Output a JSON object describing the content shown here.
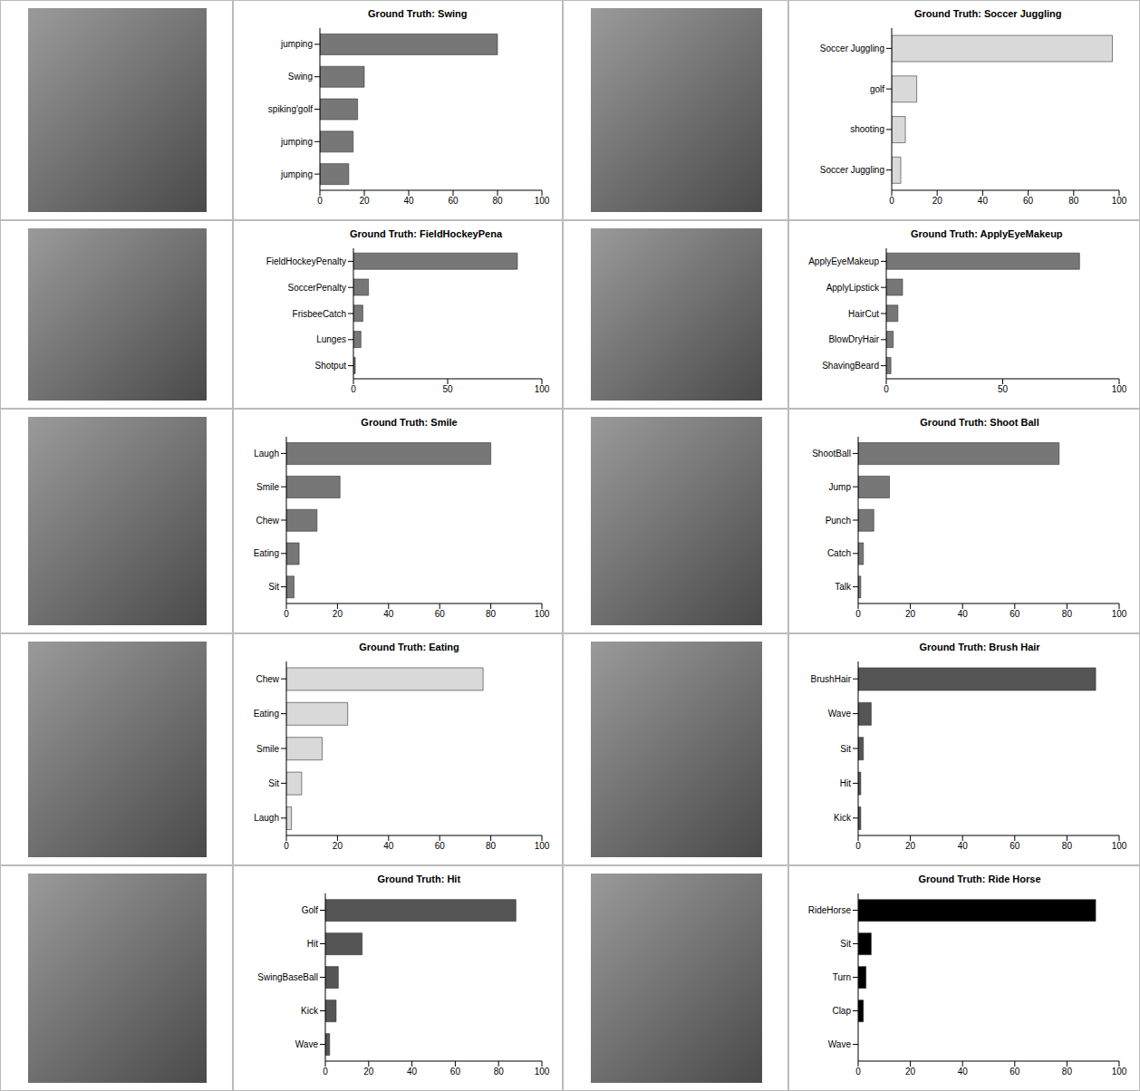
{
  "chart_data": [
    {
      "type": "bar",
      "orientation": "horizontal",
      "title": "Ground Truth: Swing",
      "categories": [
        "jumping",
        "Swing",
        "spiking'golf",
        "jumping",
        "jumping"
      ],
      "values": [
        80,
        20,
        17,
        15,
        13
      ],
      "color": "#777777",
      "xlim": [
        0,
        100
      ],
      "xticks": [
        0,
        20,
        40,
        60,
        80,
        100
      ]
    },
    {
      "type": "bar",
      "orientation": "horizontal",
      "title": "Ground Truth: Soccer Juggling",
      "categories": [
        "Soccer Juggling",
        "golf",
        "shooting",
        "Soccer Juggling"
      ],
      "values": [
        97,
        11,
        6,
        4
      ],
      "color": "#d9d9d9",
      "xlim": [
        0,
        100
      ],
      "xticks": [
        0,
        20,
        40,
        60,
        80,
        100
      ]
    },
    {
      "type": "bar",
      "orientation": "horizontal",
      "title": "Ground Truth: FieldHockeyPena",
      "categories": [
        "FieldHockeyPenalty",
        "SoccerPenalty",
        "FrisbeeCatch",
        "Lunges",
        "Shotput"
      ],
      "values": [
        87,
        8,
        5,
        4,
        1
      ],
      "color": "#777777",
      "xlim": [
        0,
        100
      ],
      "xticks": [
        0,
        50,
        100
      ]
    },
    {
      "type": "bar",
      "orientation": "horizontal",
      "title": "Ground Truth: ApplyEyeMakeup",
      "categories": [
        "ApplyEyeMakeup",
        "ApplyLipstick",
        "HairCut",
        "BlowDryHair",
        "ShavingBeard"
      ],
      "values": [
        83,
        7,
        5,
        3,
        2
      ],
      "color": "#777777",
      "xlim": [
        0,
        100
      ],
      "xticks": [
        0,
        50,
        100
      ]
    },
    {
      "type": "bar",
      "orientation": "horizontal",
      "title": "Ground Truth: Smile",
      "categories": [
        "Laugh",
        "Smile",
        "Chew",
        "Eating",
        "Sit"
      ],
      "values": [
        80,
        21,
        12,
        5,
        3
      ],
      "color": "#777777",
      "xlim": [
        0,
        100
      ],
      "xticks": [
        0,
        20,
        40,
        60,
        80,
        100
      ]
    },
    {
      "type": "bar",
      "orientation": "horizontal",
      "title": "Ground Truth: Shoot Ball",
      "categories": [
        "ShootBall",
        "Jump",
        "Punch",
        "Catch",
        "Talk"
      ],
      "values": [
        77,
        12,
        6,
        2,
        1
      ],
      "color": "#777777",
      "xlim": [
        0,
        100
      ],
      "xticks": [
        0,
        20,
        40,
        60,
        80,
        100
      ]
    },
    {
      "type": "bar",
      "orientation": "horizontal",
      "title": "Ground Truth: Eating",
      "categories": [
        "Chew",
        "Eating",
        "Smile",
        "Sit",
        "Laugh"
      ],
      "values": [
        77,
        24,
        14,
        6,
        2
      ],
      "color": "#d9d9d9",
      "xlim": [
        0,
        100
      ],
      "xticks": [
        0,
        20,
        40,
        60,
        80,
        100
      ]
    },
    {
      "type": "bar",
      "orientation": "horizontal",
      "title": "Ground Truth: Brush Hair",
      "categories": [
        "BrushHair",
        "Wave",
        "Sit",
        "Hit",
        "Kick"
      ],
      "values": [
        91,
        5,
        2,
        1,
        1
      ],
      "color": "#555555",
      "xlim": [
        0,
        100
      ],
      "xticks": [
        0,
        20,
        40,
        60,
        80,
        100
      ]
    },
    {
      "type": "bar",
      "orientation": "horizontal",
      "title": "Ground Truth: Hit",
      "categories": [
        "Golf",
        "Hit",
        "SwingBaseBall",
        "Kick",
        "Wave"
      ],
      "values": [
        88,
        17,
        6,
        5,
        2
      ],
      "color": "#555555",
      "xlim": [
        0,
        100
      ],
      "xticks": [
        0,
        20,
        40,
        60,
        80,
        100
      ]
    },
    {
      "type": "bar",
      "orientation": "horizontal",
      "title": "Ground Truth: Ride Horse",
      "categories": [
        "RideHorse",
        "Sit",
        "Turn",
        "Clap",
        "Wave"
      ],
      "values": [
        91,
        5,
        3,
        2,
        0
      ],
      "color": "#000000",
      "xlim": [
        0,
        100
      ],
      "xticks": [
        0,
        20,
        40,
        60,
        80,
        100
      ]
    }
  ]
}
